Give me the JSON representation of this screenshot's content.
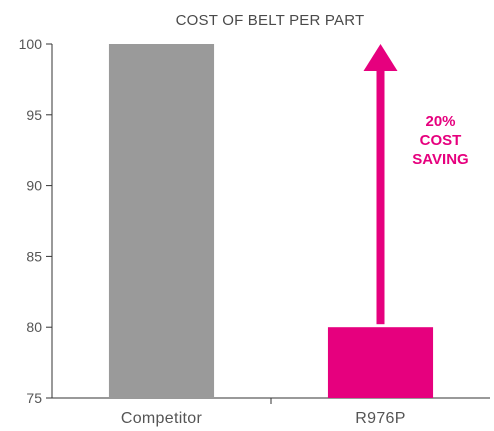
{
  "chart_data": {
    "type": "bar",
    "title": "COST OF BELT PER PART",
    "xlabel": "",
    "ylabel": "",
    "categories": [
      "Competitor",
      "R976P"
    ],
    "values": [
      100,
      80
    ],
    "ylim": [
      75,
      100
    ],
    "yticks": [
      75,
      80,
      85,
      90,
      95,
      100
    ],
    "grid": false,
    "legend": "none",
    "annotation": {
      "lines": [
        "20%",
        "COST",
        "SAVING"
      ],
      "arrow_from": 80,
      "arrow_to": 100
    },
    "colors": {
      "Competitor": "#9a9a9a",
      "R976P": "#e6007e",
      "annotation": "#e6007e",
      "axis": "#333333"
    }
  }
}
